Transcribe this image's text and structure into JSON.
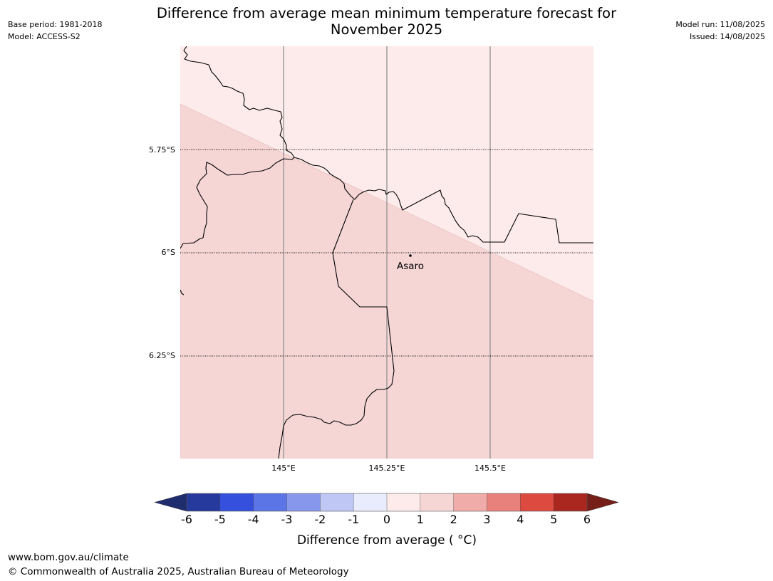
{
  "title_line1": "Difference from average mean minimum temperature forecast for",
  "title_line2": "November 2025",
  "meta_left": {
    "base_period": "Base period: 1981-2018",
    "model": "Model: ACCESS-S2"
  },
  "meta_right": {
    "model_run": "Model run: 11/08/2025",
    "issued": "Issued: 14/08/2025"
  },
  "map": {
    "lat_labels": [
      "5.75°S",
      "6°S",
      "6.25°S"
    ],
    "lon_labels": [
      "145°E",
      "145.25°E",
      "145.5°E"
    ],
    "place": {
      "name": "Asaro"
    },
    "region_colors": {
      "upper": "#fcebea",
      "lower": "#f5d6d5"
    }
  },
  "colorbar": {
    "ticks": [
      "-6",
      "-5",
      "-4",
      "-3",
      "-2",
      "-1",
      "0",
      "1",
      "2",
      "3",
      "4",
      "5",
      "6"
    ],
    "colors": [
      "#263a9e",
      "#3450dc",
      "#5c75e6",
      "#8797ec",
      "#bfc7f5",
      "#e9ecfd",
      "#fcebea",
      "#f5d6d5",
      "#efaca9",
      "#e8807b",
      "#dc4a40",
      "#a9271f"
    ],
    "extend_low_color": "#1f2c6e",
    "extend_high_color": "#761e18",
    "title": "Difference from average ( °C)"
  },
  "footer": {
    "url": "www.bom.gov.au/climate",
    "copyright": "© Commonwealth of Australia 2025, Australian Bureau of Meteorology"
  }
}
